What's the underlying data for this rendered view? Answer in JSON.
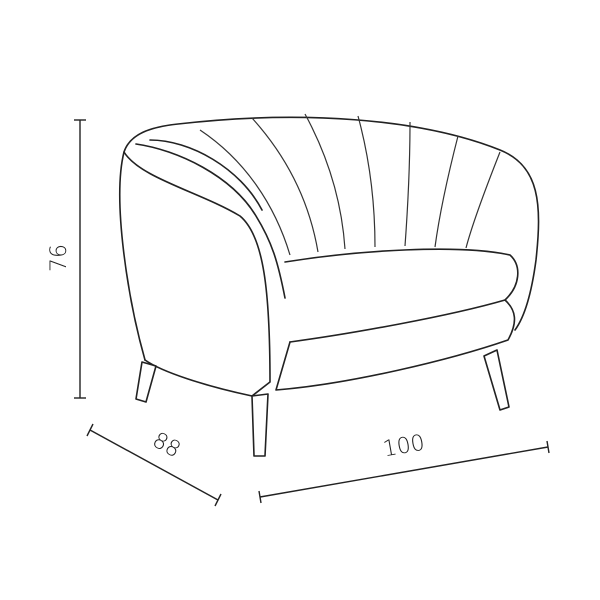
{
  "dimensions": {
    "height": "76",
    "depth": "88",
    "width": "100"
  }
}
